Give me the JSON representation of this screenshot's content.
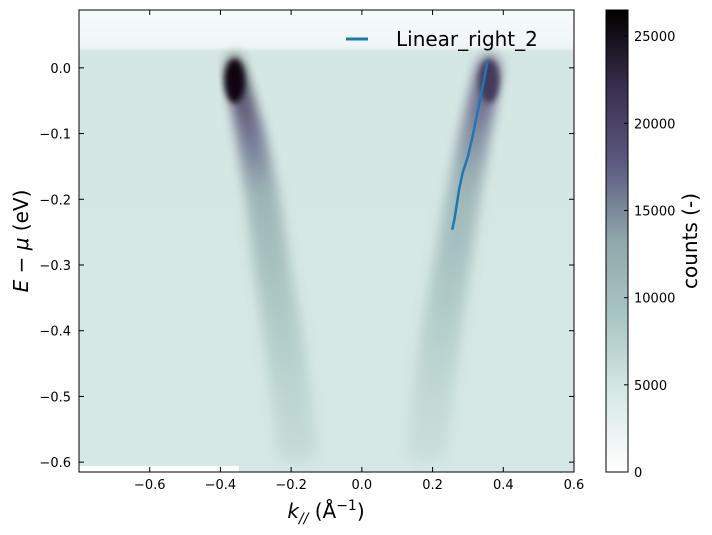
{
  "chart_data": {
    "type": "heatmap",
    "xlabel_main": "k",
    "xlabel_sub": "//",
    "xlabel_unit_prefix": " (Å",
    "xlabel_unit_sup": "−1",
    "xlabel_unit_suffix": ")",
    "ylabel_prefix": "E − ",
    "ylabel_mu": "μ",
    "ylabel_suffix": " (eV)",
    "xlim": [
      -0.8,
      0.6
    ],
    "ylim": [
      -0.615,
      0.088
    ],
    "xticks": [
      {
        "value": -0.6,
        "label": "−0.6"
      },
      {
        "value": -0.4,
        "label": "−0.4"
      },
      {
        "value": -0.2,
        "label": "−0.2"
      },
      {
        "value": 0.0,
        "label": "0.0"
      },
      {
        "value": 0.2,
        "label": "0.2"
      },
      {
        "value": 0.4,
        "label": "0.4"
      },
      {
        "value": 0.6,
        "label": "0.6"
      }
    ],
    "yticks": [
      {
        "value": 0.0,
        "label": "0.0"
      },
      {
        "value": -0.1,
        "label": "−0.1"
      },
      {
        "value": -0.2,
        "label": "−0.2"
      },
      {
        "value": -0.3,
        "label": "−0.3"
      },
      {
        "value": -0.4,
        "label": "−0.4"
      },
      {
        "value": -0.5,
        "label": "−0.5"
      },
      {
        "value": -0.6,
        "label": "−0.6"
      }
    ],
    "colorbar": {
      "label": "counts (-)",
      "range": [
        0,
        26500
      ],
      "ticks": [
        {
          "value": 0,
          "label": "0"
        },
        {
          "value": 5000,
          "label": "5000"
        },
        {
          "value": 10000,
          "label": "10000"
        },
        {
          "value": 15000,
          "label": "15000"
        },
        {
          "value": 20000,
          "label": "20000"
        },
        {
          "value": 25000,
          "label": "25000"
        }
      ],
      "colormap_stops": [
        "#ffffff",
        "#d8e9e6",
        "#a9c7c4",
        "#8fa8ab",
        "#5c5a80",
        "#3a2e4e",
        "#000000"
      ]
    },
    "heatmap_bands": [
      {
        "side": "left",
        "points": [
          {
            "E": 0.0,
            "k": -0.36,
            "counts": 26000
          },
          {
            "E": -0.1,
            "k": -0.315,
            "counts": 18000
          },
          {
            "E": -0.2,
            "k": -0.28,
            "counts": 13000
          },
          {
            "E": -0.3,
            "k": -0.255,
            "counts": 11000
          },
          {
            "E": -0.4,
            "k": -0.225,
            "counts": 9000
          },
          {
            "E": -0.5,
            "k": -0.2,
            "counts": 7500
          },
          {
            "E": -0.6,
            "k": -0.18,
            "counts": 6500
          }
        ]
      },
      {
        "side": "right",
        "points": [
          {
            "E": 0.0,
            "k": 0.36,
            "counts": 21000
          },
          {
            "E": -0.1,
            "k": 0.32,
            "counts": 16000
          },
          {
            "E": -0.2,
            "k": 0.285,
            "counts": 12500
          },
          {
            "E": -0.3,
            "k": 0.255,
            "counts": 10500
          },
          {
            "E": -0.4,
            "k": 0.225,
            "counts": 8500
          },
          {
            "E": -0.5,
            "k": 0.2,
            "counts": 7000
          },
          {
            "E": -0.6,
            "k": 0.18,
            "counts": 6000
          }
        ]
      }
    ],
    "series": [
      {
        "name": "Linear_right_2",
        "color": "#1f77b4",
        "type": "line",
        "x": [
          0.355,
          0.345,
          0.33,
          0.315,
          0.3,
          0.285,
          0.275,
          0.268,
          0.262,
          0.256
        ],
        "y": [
          0.01,
          -0.02,
          -0.06,
          -0.1,
          -0.135,
          -0.16,
          -0.185,
          -0.21,
          -0.23,
          -0.245
        ]
      }
    ],
    "legend_position": "upper-right"
  }
}
